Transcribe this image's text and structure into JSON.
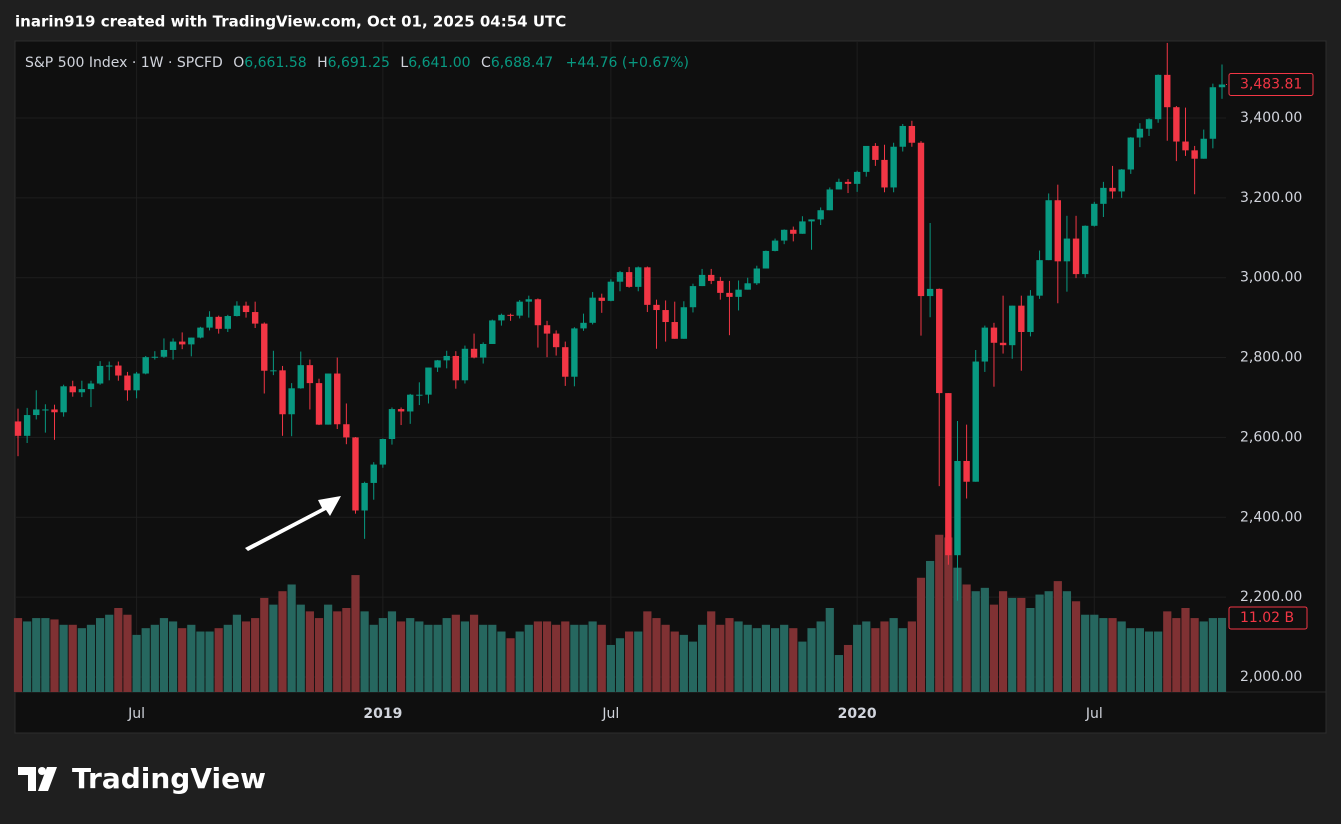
{
  "header": {
    "text": "inarin919 created with TradingView.com, Oct 01, 2025 04:54 UTC"
  },
  "legend": {
    "symbol": "S&P 500 Index · 1W · SPCFD",
    "o_key": "O",
    "o": "6,661.58",
    "h_key": "H",
    "h": "6,691.25",
    "l_key": "L",
    "l": "6,641.00",
    "c_key": "C",
    "c": "6,688.47",
    "change": "+44.76 (+0.67%)"
  },
  "footer": {
    "brand": "TradingView"
  },
  "chart_data": {
    "type": "candlestick",
    "up_color": "#089981",
    "down_color": "#f23645",
    "volume_up_color": "#26675f",
    "volume_down_color": "#7f3133",
    "xlim": [
      -0.33,
      132.44
    ],
    "xticks": [
      {
        "value": 13,
        "label": "Jul"
      },
      {
        "value": 40,
        "label": "2019"
      },
      {
        "value": 65,
        "label": "Jul"
      },
      {
        "value": 92,
        "label": "2020"
      },
      {
        "value": 118,
        "label": "Jul"
      }
    ],
    "ylim": [
      1962.4,
      3590.3
    ],
    "yticks": [
      {
        "value": 2000,
        "label": "2,000.00"
      },
      {
        "value": 2200,
        "label": "2,200.00"
      },
      {
        "value": 2400,
        "label": "2,400.00"
      },
      {
        "value": 2600,
        "label": "2,600.00"
      },
      {
        "value": 2800,
        "label": "2,800.00"
      },
      {
        "value": 3000,
        "label": "3,000.00"
      },
      {
        "value": 3200,
        "label": "3,200.00"
      },
      {
        "value": 3400,
        "label": "3,400.00"
      }
    ],
    "vlim": [
      0,
      25
    ],
    "grid": true,
    "last_price_label": "3,483.81",
    "last_volume_label": "11.02 B",
    "ohlc": [
      [
        2640,
        2672,
        2553,
        2604
      ],
      [
        2604,
        2674,
        2586,
        2656
      ],
      [
        2656,
        2718,
        2645,
        2670
      ],
      [
        2670,
        2683,
        2612,
        2670
      ],
      [
        2670,
        2682,
        2594,
        2663
      ],
      [
        2663,
        2732,
        2652,
        2728
      ],
      [
        2728,
        2742,
        2702,
        2713
      ],
      [
        2713,
        2742,
        2701,
        2721
      ],
      [
        2721,
        2742,
        2676,
        2735
      ],
      [
        2735,
        2791,
        2732,
        2779
      ],
      [
        2779,
        2790,
        2743,
        2780
      ],
      [
        2780,
        2790,
        2742,
        2755
      ],
      [
        2755,
        2764,
        2692,
        2718
      ],
      [
        2718,
        2764,
        2698,
        2760
      ],
      [
        2760,
        2804,
        2758,
        2801
      ],
      [
        2801,
        2816,
        2795,
        2802
      ],
      [
        2802,
        2848,
        2799,
        2819
      ],
      [
        2819,
        2848,
        2795,
        2840
      ],
      [
        2840,
        2863,
        2821,
        2833
      ],
      [
        2833,
        2850,
        2803,
        2850
      ],
      [
        2850,
        2877,
        2848,
        2875
      ],
      [
        2875,
        2916,
        2868,
        2902
      ],
      [
        2902,
        2905,
        2860,
        2872
      ],
      [
        2872,
        2907,
        2864,
        2904
      ],
      [
        2904,
        2941,
        2903,
        2930
      ],
      [
        2930,
        2940,
        2900,
        2914
      ],
      [
        2914,
        2940,
        2874,
        2885
      ],
      [
        2885,
        2888,
        2710,
        2767
      ],
      [
        2767,
        2817,
        2756,
        2768
      ],
      [
        2768,
        2779,
        2604,
        2658
      ],
      [
        2658,
        2736,
        2603,
        2723
      ],
      [
        2723,
        2815,
        2722,
        2781
      ],
      [
        2781,
        2795,
        2670,
        2736
      ],
      [
        2736,
        2747,
        2631,
        2632
      ],
      [
        2632,
        2760,
        2632,
        2760
      ],
      [
        2760,
        2800,
        2621,
        2633
      ],
      [
        2633,
        2685,
        2583,
        2600
      ],
      [
        2600,
        2601,
        2409,
        2417
      ],
      [
        2417,
        2489,
        2346,
        2486
      ],
      [
        2486,
        2538,
        2444,
        2532
      ],
      [
        2532,
        2597,
        2524,
        2596
      ],
      [
        2596,
        2675,
        2582,
        2671
      ],
      [
        2671,
        2675,
        2631,
        2665
      ],
      [
        2665,
        2709,
        2634,
        2707
      ],
      [
        2707,
        2738,
        2681,
        2707
      ],
      [
        2707,
        2775,
        2685,
        2775
      ],
      [
        2775,
        2794,
        2764,
        2793
      ],
      [
        2793,
        2817,
        2773,
        2804
      ],
      [
        2804,
        2816,
        2722,
        2743
      ],
      [
        2743,
        2830,
        2735,
        2822
      ],
      [
        2822,
        2860,
        2798,
        2800
      ],
      [
        2800,
        2838,
        2785,
        2834
      ],
      [
        2834,
        2895,
        2834,
        2893
      ],
      [
        2893,
        2910,
        2880,
        2907
      ],
      [
        2907,
        2910,
        2892,
        2905
      ],
      [
        2905,
        2944,
        2898,
        2940
      ],
      [
        2940,
        2955,
        2900,
        2946
      ],
      [
        2946,
        2948,
        2825,
        2881
      ],
      [
        2881,
        2892,
        2801,
        2860
      ],
      [
        2860,
        2868,
        2805,
        2826
      ],
      [
        2826,
        2840,
        2729,
        2752
      ],
      [
        2752,
        2876,
        2728,
        2873
      ],
      [
        2873,
        2910,
        2867,
        2887
      ],
      [
        2887,
        2964,
        2883,
        2950
      ],
      [
        2950,
        2960,
        2912,
        2942
      ],
      [
        2942,
        2996,
        2941,
        2990
      ],
      [
        2990,
        3017,
        2966,
        3014
      ],
      [
        3014,
        3027,
        2975,
        2977
      ],
      [
        2977,
        3028,
        2966,
        3026
      ],
      [
        3026,
        3028,
        2914,
        2932
      ],
      [
        2932,
        2945,
        2822,
        2919
      ],
      [
        2919,
        2943,
        2840,
        2889
      ],
      [
        2889,
        2940,
        2847,
        2847
      ],
      [
        2847,
        2941,
        2847,
        2926
      ],
      [
        2926,
        2985,
        2913,
        2979
      ],
      [
        2979,
        3022,
        2979,
        3007
      ],
      [
        3007,
        3022,
        2984,
        2992
      ],
      [
        2992,
        3002,
        2945,
        2962
      ],
      [
        2962,
        2992,
        2856,
        2952
      ],
      [
        2952,
        2993,
        2918,
        2970
      ],
      [
        2970,
        3000,
        2970,
        2986
      ],
      [
        2986,
        3030,
        2982,
        3023
      ],
      [
        3023,
        3068,
        3023,
        3067
      ],
      [
        3067,
        3098,
        3066,
        3093
      ],
      [
        3093,
        3121,
        3084,
        3120
      ],
      [
        3120,
        3128,
        3091,
        3110
      ],
      [
        3110,
        3154,
        3110,
        3141
      ],
      [
        3141,
        3146,
        3070,
        3146
      ],
      [
        3146,
        3176,
        3132,
        3169
      ],
      [
        3169,
        3226,
        3169,
        3221
      ],
      [
        3221,
        3248,
        3221,
        3240
      ],
      [
        3240,
        3247,
        3212,
        3235
      ],
      [
        3235,
        3268,
        3215,
        3265
      ],
      [
        3265,
        3329,
        3253,
        3330
      ],
      [
        3330,
        3337,
        3280,
        3295
      ],
      [
        3295,
        3333,
        3214,
        3226
      ],
      [
        3226,
        3338,
        3214,
        3328
      ],
      [
        3328,
        3385,
        3316,
        3380
      ],
      [
        3380,
        3393,
        3328,
        3338
      ],
      [
        3338,
        3342,
        2855,
        2954
      ],
      [
        2954,
        3137,
        2901,
        2972
      ],
      [
        2972,
        2973,
        2478,
        2711
      ],
      [
        2711,
        2711,
        2281,
        2305
      ],
      [
        2305,
        2641,
        2191,
        2541
      ],
      [
        2541,
        2632,
        2447,
        2489
      ],
      [
        2489,
        2819,
        2489,
        2790
      ],
      [
        2790,
        2880,
        2764,
        2875
      ],
      [
        2875,
        2887,
        2727,
        2837
      ],
      [
        2837,
        2955,
        2810,
        2831
      ],
      [
        2831,
        2930,
        2797,
        2930
      ],
      [
        2930,
        2955,
        2767,
        2864
      ],
      [
        2864,
        2969,
        2853,
        2955
      ],
      [
        2955,
        3068,
        2947,
        3044
      ],
      [
        3044,
        3211,
        3044,
        3194
      ],
      [
        3194,
        3233,
        2936,
        3041
      ],
      [
        3041,
        3155,
        2965,
        3098
      ],
      [
        3098,
        3155,
        2999,
        3009
      ],
      [
        3009,
        3131,
        3000,
        3130
      ],
      [
        3130,
        3190,
        3128,
        3185
      ],
      [
        3185,
        3240,
        3152,
        3225
      ],
      [
        3225,
        3280,
        3198,
        3216
      ],
      [
        3216,
        3272,
        3200,
        3271
      ],
      [
        3271,
        3352,
        3260,
        3351
      ],
      [
        3351,
        3387,
        3327,
        3373
      ],
      [
        3373,
        3399,
        3355,
        3397
      ],
      [
        3397,
        3509,
        3388,
        3508
      ],
      [
        3508,
        3588,
        3343,
        3427
      ],
      [
        3427,
        3430,
        3292,
        3341
      ],
      [
        3341,
        3426,
        3305,
        3319
      ],
      [
        3319,
        3330,
        3209,
        3298
      ],
      [
        3298,
        3371,
        3298,
        3348
      ],
      [
        3348,
        3486,
        3324,
        3477
      ],
      [
        3477,
        3534,
        3448,
        3483.81
      ]
    ],
    "volume": [
      11,
      10.5,
      11,
      11,
      10.8,
      10,
      10,
      9.5,
      10,
      11,
      11.5,
      12.5,
      11.5,
      8.5,
      9.5,
      10,
      11,
      10.5,
      9.5,
      10,
      9,
      9,
      9.5,
      10,
      11.5,
      10.5,
      11,
      14,
      13,
      15,
      16,
      13,
      12,
      11,
      13,
      12,
      12.5,
      17.4,
      12,
      10,
      11,
      12,
      10.5,
      11,
      10.5,
      10,
      10,
      11,
      11.5,
      10.5,
      11.5,
      10,
      10,
      9,
      8,
      9,
      10,
      10.5,
      10.5,
      10,
      10.5,
      10,
      10,
      10.5,
      10,
      7,
      8,
      9,
      9,
      12,
      11,
      10,
      9,
      8.5,
      7.5,
      10,
      12,
      10,
      11,
      10.5,
      10,
      9.5,
      10,
      9.5,
      10,
      9.5,
      7.5,
      9.5,
      10.5,
      12.5,
      5.5,
      7,
      10,
      10.5,
      9.5,
      10.5,
      11,
      9.5,
      10.5,
      17,
      19.5,
      23.4,
      23,
      18.5,
      16,
      15,
      15.5,
      13,
      15,
      14,
      14,
      12.5,
      14.5,
      15,
      16.5,
      15,
      13.5,
      11.5,
      11.5,
      11,
      11,
      10.5,
      9.5,
      9.5,
      9,
      9,
      12,
      11,
      12.5,
      11,
      10.5,
      11,
      11.02
    ]
  }
}
